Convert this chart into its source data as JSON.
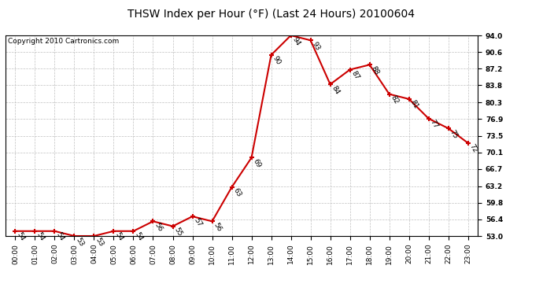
{
  "title": "THSW Index per Hour (°F) (Last 24 Hours) 20100604",
  "copyright": "Copyright 2010 Cartronics.com",
  "hours": [
    "00:00",
    "01:00",
    "02:00",
    "03:00",
    "04:00",
    "05:00",
    "06:00",
    "07:00",
    "08:00",
    "09:00",
    "10:00",
    "11:00",
    "12:00",
    "13:00",
    "14:00",
    "15:00",
    "16:00",
    "17:00",
    "18:00",
    "19:00",
    "20:00",
    "21:00",
    "22:00",
    "23:00"
  ],
  "values": [
    54,
    54,
    54,
    53,
    53,
    54,
    54,
    56,
    55,
    57,
    56,
    63,
    69,
    90,
    94,
    93,
    84,
    87,
    88,
    82,
    81,
    77,
    75,
    72
  ],
  "ylim_min": 53.0,
  "ylim_max": 94.0,
  "yticks": [
    53.0,
    56.4,
    59.8,
    63.2,
    66.7,
    70.1,
    73.5,
    76.9,
    80.3,
    83.8,
    87.2,
    90.6,
    94.0
  ],
  "line_color": "#cc0000",
  "marker_color": "#cc0000",
  "bg_color": "#ffffff",
  "grid_color": "#c0c0c0",
  "title_fontsize": 10,
  "label_fontsize": 6.5,
  "tick_fontsize": 6.5,
  "copyright_fontsize": 6.5
}
